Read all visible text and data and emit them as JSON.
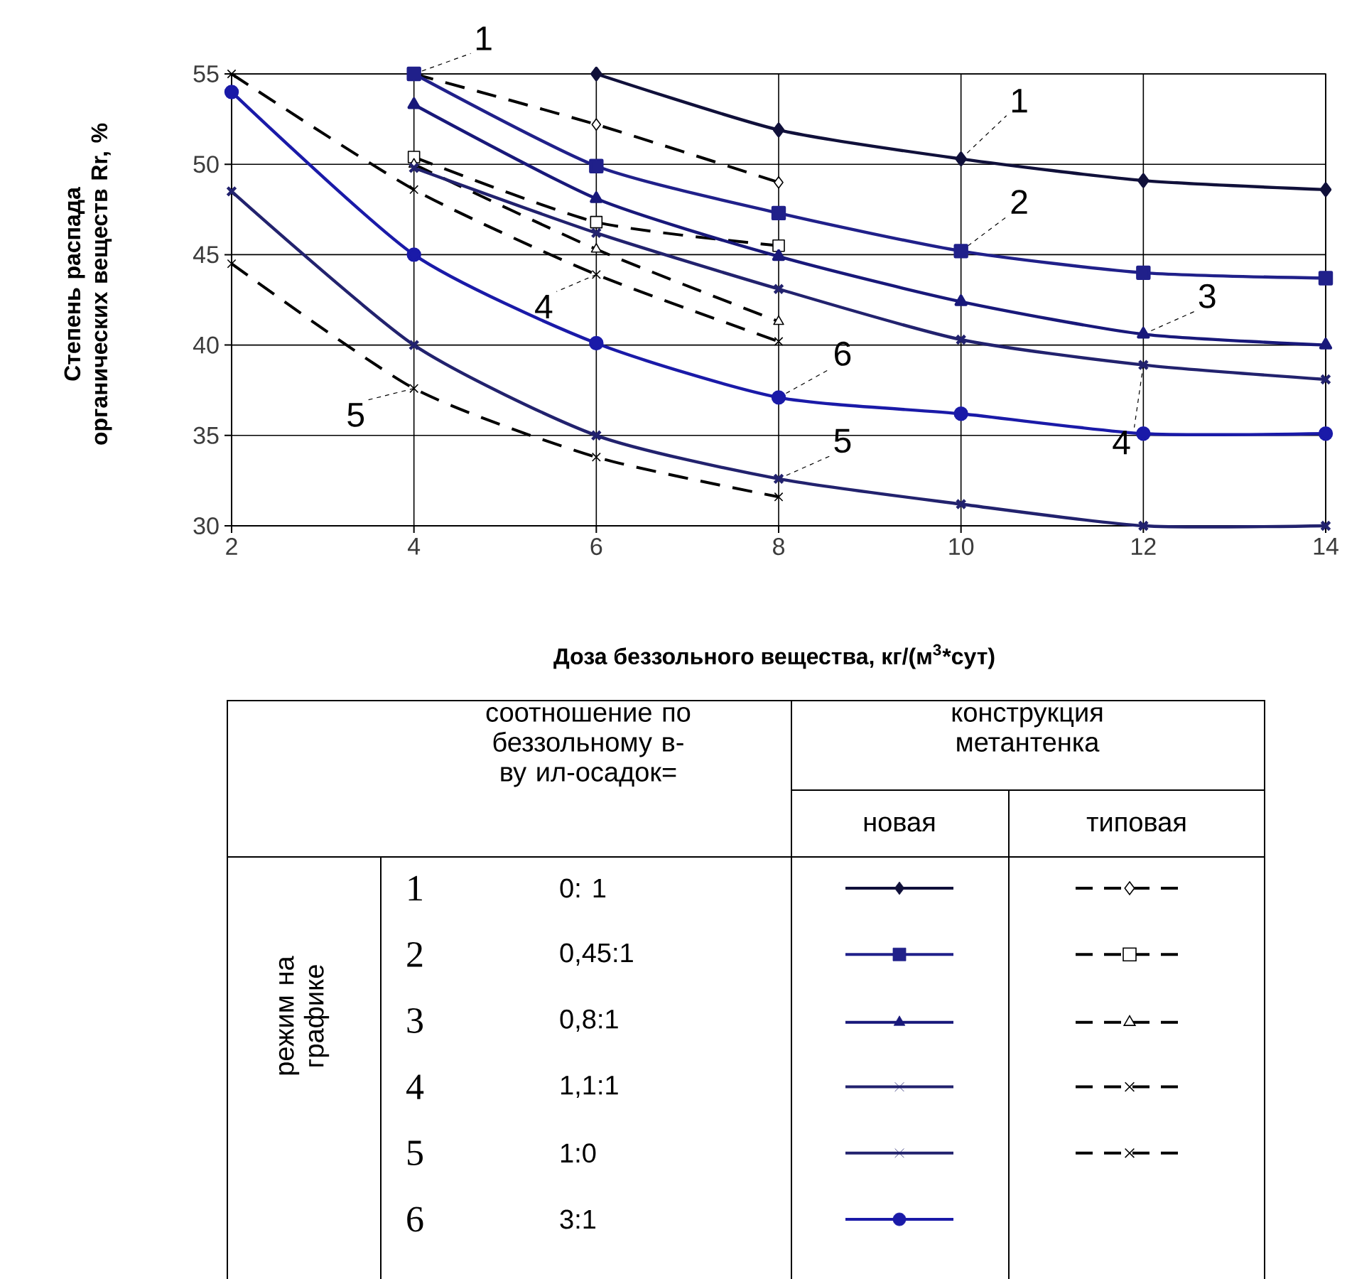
{
  "chart_data": {
    "type": "line",
    "xlabel": "Доза беззольного вещества, кг/(м$^{3}$*сут)",
    "ylabel": "Степень распада органических веществ Rr, %",
    "xlim": [
      2,
      14
    ],
    "ylim": [
      30,
      55
    ],
    "xticks": [
      2,
      4,
      6,
      8,
      10,
      12,
      14
    ],
    "yticks": [
      30,
      35,
      40,
      45,
      50,
      55
    ],
    "grid": true,
    "series": [
      {
        "x": [
          6,
          8,
          10,
          12,
          14
        ],
        "values": [
          55,
          51.9,
          50.3,
          49.1,
          48.6
        ],
        "color": "#10103a",
        "marker": "diamond",
        "line_style": "solid"
      },
      {
        "x": [
          4,
          6,
          8,
          10,
          12,
          14
        ],
        "values": [
          55,
          49.9,
          47.3,
          45.2,
          44.0,
          43.7
        ],
        "color": "#20208a",
        "marker": "square",
        "line_style": "solid"
      },
      {
        "x": [
          4,
          6,
          8,
          10,
          12,
          14
        ],
        "values": [
          53.3,
          48.1,
          44.9,
          42.4,
          40.6,
          40.0
        ],
        "color": "#18187a",
        "marker": "triangle",
        "line_style": "solid"
      },
      {
        "x": [
          4,
          6,
          8,
          10,
          12,
          14
        ],
        "values": [
          49.8,
          46.2,
          43.1,
          40.3,
          38.9,
          38.1
        ],
        "color": "#22226e",
        "marker": "cross",
        "line_style": "solid"
      },
      {
        "x": [
          2,
          4,
          6,
          8,
          10,
          12,
          14
        ],
        "values": [
          48.5,
          40.0,
          35.0,
          32.6,
          31.2,
          30.0,
          30.0
        ],
        "color": "#22226e",
        "marker": "cross",
        "line_style": "solid"
      },
      {
        "x": [
          2,
          4,
          6,
          8,
          10,
          12,
          14
        ],
        "values": [
          54.0,
          45.0,
          40.1,
          37.1,
          36.2,
          35.1,
          35.1
        ],
        "color": "#1a1aa8",
        "marker": "circle",
        "line_style": "solid"
      },
      {
        "x": [
          4,
          6,
          8
        ],
        "values": [
          55,
          52.2,
          49.0
        ],
        "color": "#000000",
        "marker": "diamond",
        "line_style": "dashed"
      },
      {
        "x": [
          4,
          6,
          8
        ],
        "values": [
          50.4,
          46.8,
          45.5
        ],
        "color": "#000000",
        "marker": "square",
        "line_style": "dashed"
      },
      {
        "x": [
          4,
          6,
          8
        ],
        "values": [
          50.0,
          45.3,
          41.3
        ],
        "color": "#000000",
        "marker": "triangle",
        "line_style": "dashed"
      },
      {
        "x": [
          2,
          4,
          6,
          8
        ],
        "values": [
          55,
          48.6,
          43.9,
          40.2
        ],
        "color": "#000000",
        "marker": "cross",
        "line_style": "dashed"
      },
      {
        "x": [
          2,
          4,
          6,
          8
        ],
        "values": [
          44.5,
          37.6,
          33.8,
          31.6
        ],
        "color": "#000000",
        "marker": "cross",
        "line_style": "dashed"
      }
    ],
    "annotations": [
      {
        "text": "1",
        "x": 4,
        "y": 55
      },
      {
        "text": "1",
        "x": 10,
        "y": 50.3
      },
      {
        "text": "2",
        "x": 10,
        "y": 45.2
      },
      {
        "text": "3",
        "x": 12,
        "y": 40.6
      },
      {
        "text": "4",
        "x": 12,
        "y": 38.9
      },
      {
        "text": "6",
        "x": 8,
        "y": 37.1
      },
      {
        "text": "5",
        "x": 8,
        "y": 32.6
      },
      {
        "text": "4",
        "x": 6,
        "y": 43.9
      },
      {
        "text": "5",
        "x": 4,
        "y": 37.6
      },
      "соотношение по беззольному в-ву ил-осадок=",
      "конструкция метантенка",
      "новая",
      "типовая",
      "режим на графике",
      "1",
      "0: 1",
      "2",
      "0,45:1",
      "3",
      "0,8:1",
      "4",
      "1,1:1",
      "5",
      "1:0",
      "6",
      "3:1"
    ]
  }
}
